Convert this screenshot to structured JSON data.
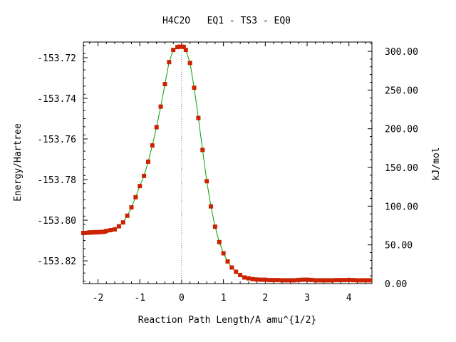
{
  "chart_data": {
    "type": "line",
    "title": "H4C2O   EQ1 - TS3 - EQ0",
    "xlabel": "Reaction Path Length/A amu^{1/2}",
    "ylabel_left": "Energy/Hartree",
    "ylabel_right": "kJ/mol",
    "xlim": [
      -2.35,
      4.55
    ],
    "ylim_left": [
      -153.8312,
      -153.7123
    ],
    "ylim_right": [
      0,
      312
    ],
    "x_ticks": [
      -2,
      -1,
      0,
      1,
      2,
      3,
      4
    ],
    "x_tick_labels": [
      "-2",
      "-1",
      "0",
      "1",
      "2",
      "3",
      "4"
    ],
    "y_left_ticks": [
      -153.72,
      -153.74,
      -153.76,
      -153.78,
      -153.8,
      -153.82
    ],
    "y_left_tick_labels": [
      "-153.72",
      "-153.74",
      "-153.76",
      "-153.78",
      "-153.80",
      "-153.82"
    ],
    "y_right_ticks": [
      300,
      250,
      200,
      150,
      100,
      50,
      0
    ],
    "y_right_tick_labels": [
      "300.00",
      "250.00",
      "200.00",
      "150.00",
      "100.00",
      "50.00",
      "0.00"
    ],
    "ts_marker_x": 0,
    "grid": false,
    "series": [
      {
        "line_color": "#00a000",
        "point_color": "#cc2200",
        "x": [
          -2.35,
          -2.25,
          -2.2,
          -2.15,
          -2.1,
          -2.05,
          -2.0,
          -1.95,
          -1.9,
          -1.85,
          -1.8,
          -1.7,
          -1.6,
          -1.5,
          -1.4,
          -1.3,
          -1.2,
          -1.1,
          -1.0,
          -0.9,
          -0.8,
          -0.7,
          -0.6,
          -0.5,
          -0.4,
          -0.3,
          -0.2,
          -0.1,
          -0.05,
          0.0,
          0.05,
          0.1,
          0.2,
          0.3,
          0.4,
          0.5,
          0.6,
          0.7,
          0.8,
          0.9,
          1.0,
          1.1,
          1.2,
          1.3,
          1.4,
          1.5,
          1.6,
          1.7,
          1.8,
          1.9,
          2.0,
          2.1,
          2.2,
          2.3,
          2.4,
          2.5,
          2.6,
          2.7,
          2.8,
          2.9,
          3.0,
          3.1,
          3.2,
          3.3,
          3.4,
          3.5,
          3.6,
          3.7,
          3.8,
          3.9,
          4.0,
          4.1,
          4.2,
          4.3,
          4.4,
          4.5
        ],
        "y": [
          -153.8063,
          -153.8062,
          -153.806,
          -153.8061,
          -153.8059,
          -153.806,
          -153.8059,
          -153.8058,
          -153.8058,
          -153.8057,
          -153.8053,
          -153.8049,
          -153.8045,
          -153.803,
          -153.8011,
          -153.7978,
          -153.7937,
          -153.7887,
          -153.7832,
          -153.7782,
          -153.7712,
          -153.7632,
          -153.7542,
          -153.7441,
          -153.733,
          -153.7222,
          -153.7162,
          -153.7148,
          -153.7146,
          -153.7146,
          -153.7147,
          -153.7162,
          -153.7226,
          -153.7348,
          -153.7497,
          -153.7654,
          -153.7808,
          -153.7932,
          -153.8032,
          -153.8108,
          -153.8163,
          -153.8203,
          -153.8233,
          -153.8254,
          -153.827,
          -153.8282,
          -153.8286,
          -153.829,
          -153.8292,
          -153.8293,
          -153.8293,
          -153.8295,
          -153.8295,
          -153.8295,
          -153.8296,
          -153.8296,
          -153.8296,
          -153.8296,
          -153.8294,
          -153.8293,
          -153.8293,
          -153.8294,
          -153.8296,
          -153.8296,
          -153.8296,
          -153.8296,
          -153.8296,
          -153.8295,
          -153.8295,
          -153.8295,
          -153.8294,
          -153.8295,
          -153.8296,
          -153.8296,
          -153.8296,
          -153.8296
        ]
      }
    ]
  }
}
